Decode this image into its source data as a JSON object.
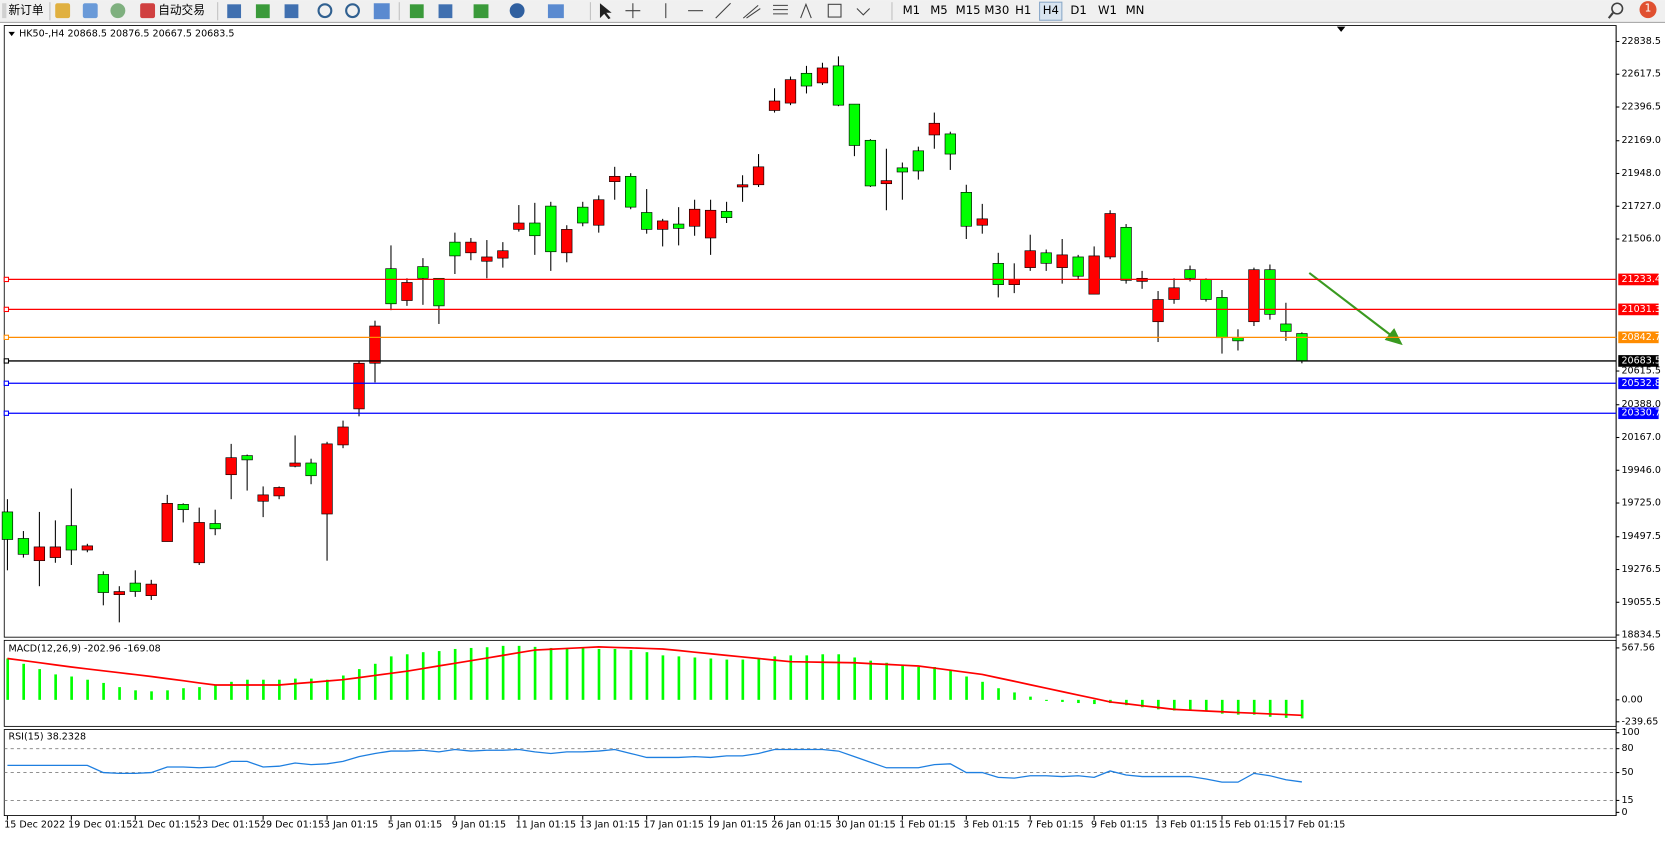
{
  "toolbar": {
    "new_order": "新订单",
    "auto_trading": "自动交易",
    "timeframes": [
      "M1",
      "M5",
      "M15",
      "M30",
      "H1",
      "H4",
      "D1",
      "W1",
      "MN"
    ],
    "notifications": "1"
  },
  "chart_data": [
    {
      "type": "candlestick",
      "title": "HK50-,H4 20868.5 20876.5 20667.5 20683.5",
      "categories": [
        "15 Dec 2022",
        null,
        null,
        null,
        "19 Dec 01:15",
        null,
        null,
        null,
        "21 Dec 01:15",
        null,
        null,
        null,
        "23 Dec 01:15",
        null,
        null,
        null,
        "29 Dec 01:15",
        null,
        null,
        null,
        "3 Jan 01:15",
        null,
        null,
        null,
        "5 Jan 01:15",
        null,
        null,
        null,
        "9 Jan 01:15",
        null,
        null,
        null,
        "11 Jan 01:15",
        null,
        null,
        null,
        "13 Jan 01:15",
        null,
        null,
        null,
        "17 Jan 01:15",
        null,
        null,
        null,
        "19 Jan 01:15",
        null,
        null,
        null,
        "26 Jan 01:15",
        null,
        null,
        null,
        "30 Jan 01:15",
        null,
        null,
        null,
        "1 Feb 01:15",
        null,
        null,
        null,
        "3 Feb 01:15",
        null,
        null,
        null,
        "7 Feb 01:15",
        null,
        null,
        null,
        "9 Feb 01:15",
        null,
        null,
        null,
        "13 Feb 01:15",
        null,
        null,
        null,
        "15 Feb 01:15",
        null,
        null,
        null,
        "17 Feb 01:15",
        null
      ],
      "open": [
        19665,
        19486,
        19336,
        19357,
        19572,
        19408,
        19243,
        19107,
        19185,
        19100,
        19465,
        19716,
        19322,
        19587,
        19916,
        20045,
        19737,
        19773,
        19973,
        19995,
        19651,
        20117,
        20360,
        20668,
        21306,
        21091,
        21320,
        21241,
        21485,
        21413,
        21356,
        21377,
        21571,
        21614,
        21728,
        21413,
        21721,
        21599,
        21893,
        21929,
        21685,
        21571,
        21607,
        21592,
        21513,
        21693,
        21857,
        21872,
        22373,
        22423,
        22624,
        22559,
        22674,
        22416,
        22172,
        21879,
        21986,
        22101,
        22208,
        22215,
        21821,
        21599,
        21342,
        21198,
        21313,
        21413,
        21313,
        21385,
        21134,
        21385,
        21585,
        21220,
        20948,
        21098,
        21299,
        21234,
        21112,
        20840,
        20948,
        21299,
        20933,
        20868.5
      ],
      "high": [
        19751,
        19536,
        19665,
        19608,
        19823,
        19450,
        19264,
        19164,
        19271,
        19207,
        19780,
        19723,
        19694,
        19680,
        20124,
        20052,
        19837,
        19837,
        20181,
        20024,
        20138,
        20281,
        20683,
        20955,
        21463,
        21241,
        21377,
        21241,
        21549,
        21513,
        21499,
        21485,
        21735,
        21750,
        21757,
        21599,
        21757,
        21800,
        21993,
        21950,
        21843,
        21642,
        21721,
        21771,
        21771,
        21757,
        21936,
        22079,
        22523,
        22602,
        22674,
        22695,
        22738,
        22416,
        22180,
        22115,
        22022,
        22129,
        22359,
        22230,
        21872,
        21743,
        21413,
        21342,
        21535,
        21435,
        21506,
        21399,
        21456,
        21700,
        21607,
        21291,
        21155,
        21241,
        21327,
        21241,
        21162,
        20897,
        21313,
        21334,
        21076,
        20876.5
      ],
      "low": [
        19271,
        19357,
        19164,
        19322,
        19307,
        19393,
        19035,
        18920,
        19092,
        19071,
        19465,
        19594,
        19307,
        19508,
        19751,
        19809,
        19630,
        19751,
        19966,
        19852,
        19336,
        20095,
        20310,
        20539,
        21026,
        21055,
        21062,
        20933,
        21270,
        21363,
        21241,
        21313,
        21556,
        21399,
        21291,
        21349,
        21592,
        21549,
        21771,
        21707,
        21542,
        21456,
        21463,
        21528,
        21399,
        21614,
        21757,
        21857,
        22359,
        22409,
        22488,
        22545,
        22402,
        22065,
        21857,
        21700,
        21771,
        21907,
        22115,
        21972,
        21506,
        21542,
        21112,
        21141,
        21291,
        21291,
        21205,
        21234,
        21134,
        21370,
        21205,
        21170,
        20811,
        21069,
        21220,
        21084,
        20733,
        20754,
        20919,
        20962,
        20819,
        20667.5
      ],
      "close": [
        19479,
        19379,
        19429,
        19429,
        19408,
        19436,
        19121,
        19128,
        19128,
        19178,
        19723,
        19680,
        19594,
        19551,
        20031,
        20016,
        19780,
        19830,
        19995,
        19909,
        20124,
        20238,
        20668,
        20919,
        21069,
        21213,
        21241,
        21055,
        21392,
        21485,
        21385,
        21427,
        21614,
        21528,
        21420,
        21571,
        21614,
        21771,
        21929,
        21721,
        21571,
        21628,
        21578,
        21707,
        21700,
        21650,
        21872,
        21993,
        22437,
        22581,
        22538,
        22660,
        22409,
        22137,
        21864,
        21900,
        21958,
        21965,
        22287,
        22079,
        21592,
        21642,
        21198,
        21234,
        21427,
        21342,
        21399,
        21255,
        21392,
        21678,
        21227,
        21241,
        21098,
        21177,
        21241,
        21098,
        20840,
        20819,
        21299,
        20998,
        20883,
        20683.5
      ],
      "up_color": "#ff0000",
      "down_color": "#00ff00",
      "ylim": [
        18820,
        22946
      ],
      "yticks": [
        22838.5,
        22617.5,
        22396.5,
        {
          "value": 22169,
          "label": "22169.0"
        },
        {
          "value": 21948,
          "label": "21948.0"
        },
        {
          "value": 21727,
          "label": "21727.0"
        },
        {
          "value": 21506,
          "label": "21506.0"
        },
        20615.5,
        {
          "value": 20388,
          "label": "20388.0"
        },
        {
          "value": 20167,
          "label": "20167.0"
        },
        {
          "value": 19946,
          "label": "19946.0"
        },
        {
          "value": 19725,
          "label": "19725.0"
        },
        19497.5,
        19276.5,
        19055.5,
        18834.5
      ],
      "levels": [
        {
          "value": 21233.4,
          "color": "#ff0000"
        },
        {
          "value": 21031.3,
          "color": "#ff0000"
        },
        {
          "value": 20842.7,
          "color": "#ff8c00"
        },
        {
          "value": 20683.5,
          "color": "#000000"
        },
        {
          "value": 20532.8,
          "color": "#0000ff"
        },
        {
          "value": 20330.7,
          "color": "#0000ff"
        }
      ]
    },
    {
      "type": "macd",
      "title": "MACD(12,26,9) -202.96 -169.08",
      "series": [
        {
          "color": "#00ff00",
          "values": [
            452,
            394,
            336,
            278,
            255,
            220,
            185,
            139,
            104,
            93,
            104,
            127,
            139,
            162,
            197,
            220,
            220,
            220,
            232,
            232,
            220,
            266,
            336,
            394,
            475,
            498,
            521,
            533,
            556,
            567,
            575,
            590,
            590,
            579,
            567,
            567,
            567,
            556,
            556,
            544,
            521,
            486,
            475,
            463,
            452,
            440,
            440,
            452,
            475,
            486,
            486,
            498,
            498,
            463,
            428,
            405,
            382,
            359,
            359,
            324,
            255,
            197,
            127,
            81,
            35,
            -12,
            -23,
            -35,
            -46,
            -35,
            -58,
            -81,
            -104,
            -116,
            -116,
            -127,
            -151,
            -162,
            -162,
            -185,
            -197,
            -202.96
          ]
        },
        {
          "color": "#ff0000",
          "values": [
            452,
            429,
            406,
            382,
            359,
            338,
            317,
            297,
            276,
            255,
            232,
            209,
            185,
            162,
            162,
            162,
            162,
            162,
            177,
            191,
            206,
            220,
            243,
            267,
            290,
            313,
            342,
            371,
            399,
            428,
            457,
            486,
            515,
            544,
            553,
            562,
            570,
            579,
            573,
            568,
            562,
            556,
            539,
            521,
            504,
            486,
            469,
            452,
            434,
            417,
            414,
            411,
            408,
            405,
            396,
            388,
            379,
            370,
            347,
            324,
            301,
            278,
            240,
            203,
            165,
            127,
            90,
            52,
            15,
            -23,
            -43,
            -64,
            -84,
            -104,
            -113,
            -122,
            -130,
            -139,
            -146,
            -154,
            -161,
            -169.08
          ]
        }
      ],
      "ylim": [
        -290,
        650
      ],
      "yticks": [
        567.56,
        {
          "value": 0,
          "label": "0.00"
        },
        -239.65
      ]
    },
    {
      "type": "line",
      "title": "RSI(15) 38.2328",
      "color": "#1e7fe0",
      "values": [
        59,
        59,
        59,
        59,
        59,
        59,
        50,
        49,
        49,
        50,
        57,
        57,
        56,
        57,
        64,
        64,
        57,
        58,
        62,
        60,
        61,
        64,
        70,
        74,
        77,
        77,
        78,
        76,
        79,
        77,
        78,
        78,
        79,
        76,
        74,
        76,
        76,
        77,
        79,
        74,
        69,
        69,
        69,
        70,
        69,
        71,
        71,
        74,
        79,
        79,
        79,
        79,
        77,
        70,
        63,
        56,
        56,
        56,
        60,
        61,
        50,
        50,
        44,
        43,
        46,
        46,
        45,
        46,
        44,
        52,
        47,
        45,
        45,
        45,
        45,
        42,
        38,
        38,
        49,
        46,
        41,
        38.2328
      ],
      "ylim": [
        0,
        100
      ],
      "yticks": [
        100,
        80,
        50,
        15,
        0
      ]
    }
  ]
}
